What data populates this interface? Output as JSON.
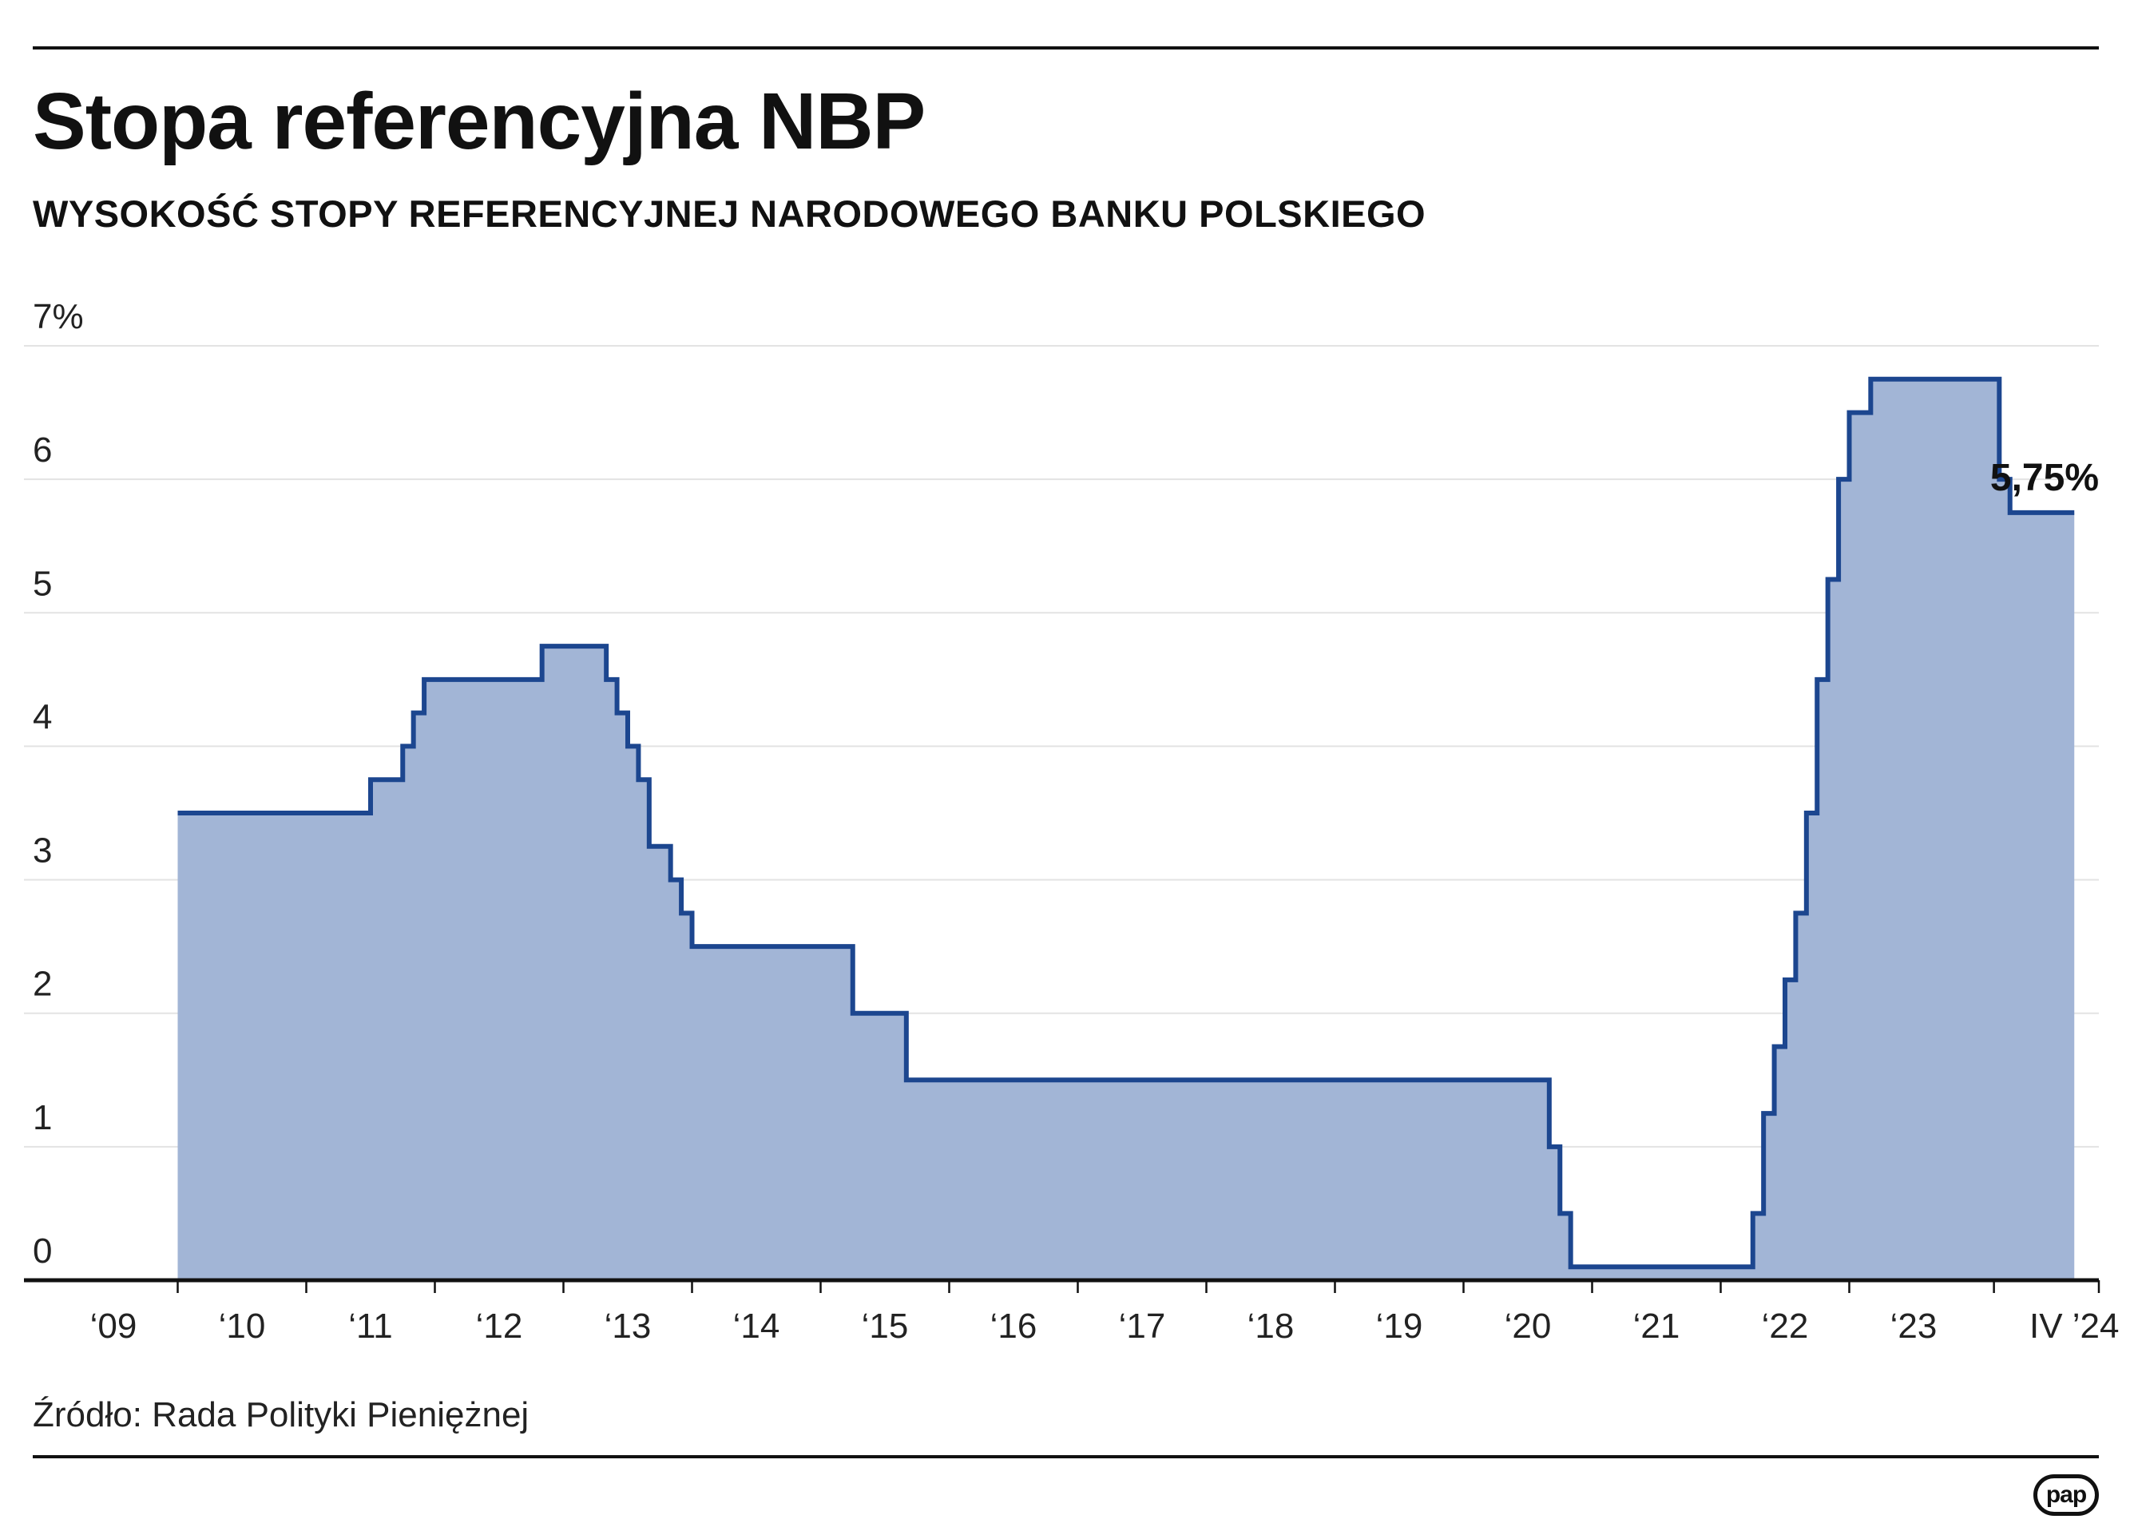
{
  "title": "Stopa referencyjna NBP",
  "subtitle": "WYSOKOŚĆ STOPY REFERENCYJNEJ NARODOWEGO BANKU POLSKIEGO",
  "source": "Źródło: Rada Polityki Pieniężnej",
  "logo": "pap",
  "chart_data": {
    "type": "area",
    "step": true,
    "title": "Stopa referencyjna NBP",
    "subtitle": "WYSOKOŚĆ STOPY REFERENCYJNEJ NARODOWEGO BANKU POLSKIEGO",
    "xlim": [
      "2009-01",
      "2024-07"
    ],
    "ylim": [
      0,
      7
    ],
    "y_unit": "%",
    "grid": true,
    "y_ticks": [
      {
        "value": 0,
        "label": "0"
      },
      {
        "value": 1,
        "label": "1"
      },
      {
        "value": 2,
        "label": "2"
      },
      {
        "value": 3,
        "label": "3"
      },
      {
        "value": 4,
        "label": "4"
      },
      {
        "value": 5,
        "label": "5"
      },
      {
        "value": 6,
        "label": "6"
      },
      {
        "value": 7,
        "label": "7%"
      }
    ],
    "x_ticks": [
      {
        "date": "2009-01",
        "label": "‘09"
      },
      {
        "date": "2010-01",
        "label": "‘10"
      },
      {
        "date": "2011-01",
        "label": "‘11"
      },
      {
        "date": "2012-01",
        "label": "‘12"
      },
      {
        "date": "2013-01",
        "label": "‘13"
      },
      {
        "date": "2014-01",
        "label": "‘14"
      },
      {
        "date": "2015-01",
        "label": "‘15"
      },
      {
        "date": "2016-01",
        "label": "‘16"
      },
      {
        "date": "2017-01",
        "label": "‘17"
      },
      {
        "date": "2018-01",
        "label": "‘18"
      },
      {
        "date": "2019-01",
        "label": "‘19"
      },
      {
        "date": "2020-01",
        "label": "‘20"
      },
      {
        "date": "2021-01",
        "label": "‘21"
      },
      {
        "date": "2022-01",
        "label": "‘22"
      },
      {
        "date": "2023-01",
        "label": "‘23"
      },
      {
        "date": "2024-04",
        "label": "IV ’24"
      }
    ],
    "series": [
      {
        "color_fill": "#a2b5d6",
        "color_line": "#1c468f",
        "points": [
          {
            "date": "2009-07",
            "value": 3.5
          },
          {
            "date": "2011-01",
            "value": 3.75
          },
          {
            "date": "2011-04",
            "value": 4.0
          },
          {
            "date": "2011-05",
            "value": 4.25
          },
          {
            "date": "2011-06",
            "value": 4.5
          },
          {
            "date": "2012-05",
            "value": 4.75
          },
          {
            "date": "2012-11",
            "value": 4.5
          },
          {
            "date": "2012-12",
            "value": 4.25
          },
          {
            "date": "2013-01",
            "value": 4.0
          },
          {
            "date": "2013-02",
            "value": 3.75
          },
          {
            "date": "2013-03",
            "value": 3.25
          },
          {
            "date": "2013-05",
            "value": 3.0
          },
          {
            "date": "2013-06",
            "value": 2.75
          },
          {
            "date": "2013-07",
            "value": 2.5
          },
          {
            "date": "2014-10",
            "value": 2.0
          },
          {
            "date": "2015-03",
            "value": 1.5
          },
          {
            "date": "2020-03",
            "value": 1.0
          },
          {
            "date": "2020-04",
            "value": 0.5
          },
          {
            "date": "2020-05",
            "value": 0.1
          },
          {
            "date": "2021-10",
            "value": 0.5
          },
          {
            "date": "2021-11",
            "value": 1.25
          },
          {
            "date": "2021-12",
            "value": 1.75
          },
          {
            "date": "2022-01",
            "value": 2.25
          },
          {
            "date": "2022-02",
            "value": 2.75
          },
          {
            "date": "2022-03",
            "value": 3.5
          },
          {
            "date": "2022-04",
            "value": 4.5
          },
          {
            "date": "2022-05",
            "value": 5.25
          },
          {
            "date": "2022-06",
            "value": 6.0
          },
          {
            "date": "2022-07",
            "value": 6.5
          },
          {
            "date": "2022-09",
            "value": 6.75
          },
          {
            "date": "2023-09",
            "value": 6.0
          },
          {
            "date": "2023-10",
            "value": 5.75
          },
          {
            "date": "2024-04",
            "value": 5.75
          }
        ]
      }
    ],
    "annotations": [
      {
        "text": "5,75%",
        "date": "2024-04",
        "value": 5.75
      }
    ]
  }
}
